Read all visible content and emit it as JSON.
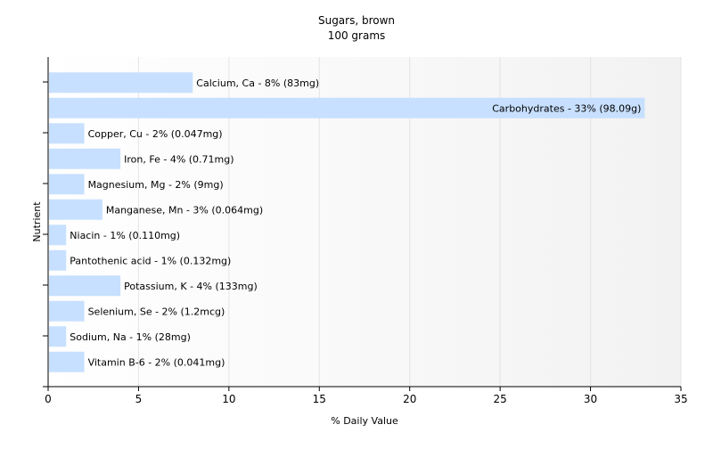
{
  "chart_data": {
    "type": "bar",
    "orientation": "horizontal",
    "title": "Sugars, brown",
    "subtitle": "100 grams",
    "xlabel": "% Daily Value",
    "ylabel": "Nutrient",
    "xlim": [
      0,
      35
    ],
    "xticks": [
      0,
      5,
      10,
      15,
      20,
      25,
      30,
      35
    ],
    "grid": true,
    "bar_color": "#c8e0ff",
    "categories": [
      "Calcium, Ca",
      "Carbohydrates",
      "Copper, Cu",
      "Iron, Fe",
      "Magnesium, Mg",
      "Manganese, Mn",
      "Niacin",
      "Pantothenic acid",
      "Potassium, K",
      "Selenium, Se",
      "Sodium, Na",
      "Vitamin B-6"
    ],
    "values": [
      8,
      33,
      2,
      4,
      2,
      3,
      1,
      1,
      4,
      2,
      1,
      2
    ],
    "labels": [
      "Calcium, Ca - 8% (83mg)",
      "Carbohydrates - 33% (98.09g)",
      "Copper, Cu - 2% (0.047mg)",
      "Iron, Fe - 4% (0.71mg)",
      "Magnesium, Mg - 2% (9mg)",
      "Manganese, Mn - 3% (0.064mg)",
      "Niacin - 1% (0.110mg)",
      "Pantothenic acid - 1% (0.132mg)",
      "Potassium, K - 4% (133mg)",
      "Selenium, Se - 2% (1.2mcg)",
      "Sodium, Na - 1% (28mg)",
      "Vitamin B-6 - 2% (0.041mg)"
    ]
  }
}
